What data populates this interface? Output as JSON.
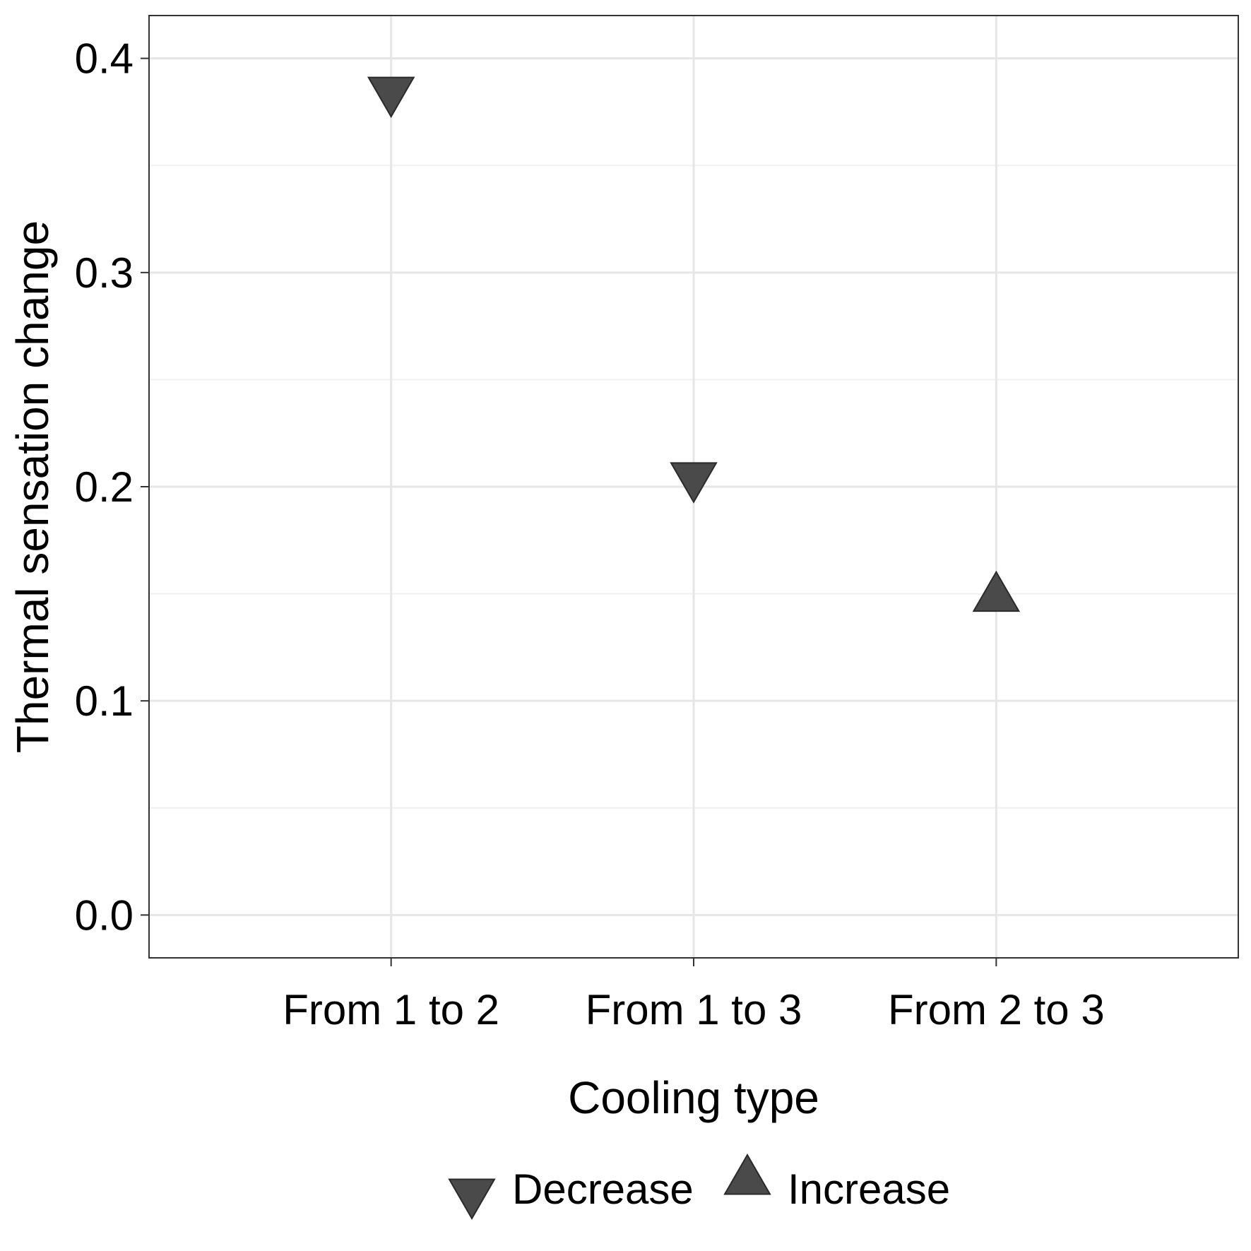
{
  "chart_data": {
    "type": "scatter",
    "title": "",
    "xlabel": "Cooling type",
    "ylabel": "Thermal sensation change",
    "categories": [
      "From 1 to 2",
      "From 1 to 3",
      "From 2 to 3"
    ],
    "ylim": [
      -0.02,
      0.42
    ],
    "yticks": [
      0.0,
      0.1,
      0.2,
      0.3,
      0.4
    ],
    "ytick_labels": [
      "0.0",
      "0.1",
      "0.2",
      "0.3",
      "0.4"
    ],
    "grid": true,
    "legend_position": "bottom",
    "points": [
      {
        "category": "From 1 to 2",
        "value": 0.385,
        "direction": "Decrease"
      },
      {
        "category": "From 1 to 3",
        "value": 0.205,
        "direction": "Decrease"
      },
      {
        "category": "From 2 to 3",
        "value": 0.148,
        "direction": "Increase"
      }
    ],
    "legend": [
      {
        "label": "Decrease",
        "shape": "triangle-down"
      },
      {
        "label": "Increase",
        "shape": "triangle-up"
      }
    ],
    "colors": {
      "marker_fill": "#4a4a4a",
      "marker_stroke": "#2a2a2a",
      "grid_major": "#e6e6e6",
      "grid_minor": "#f0f0f0",
      "panel_border": "#333333",
      "text": "#000000"
    }
  }
}
